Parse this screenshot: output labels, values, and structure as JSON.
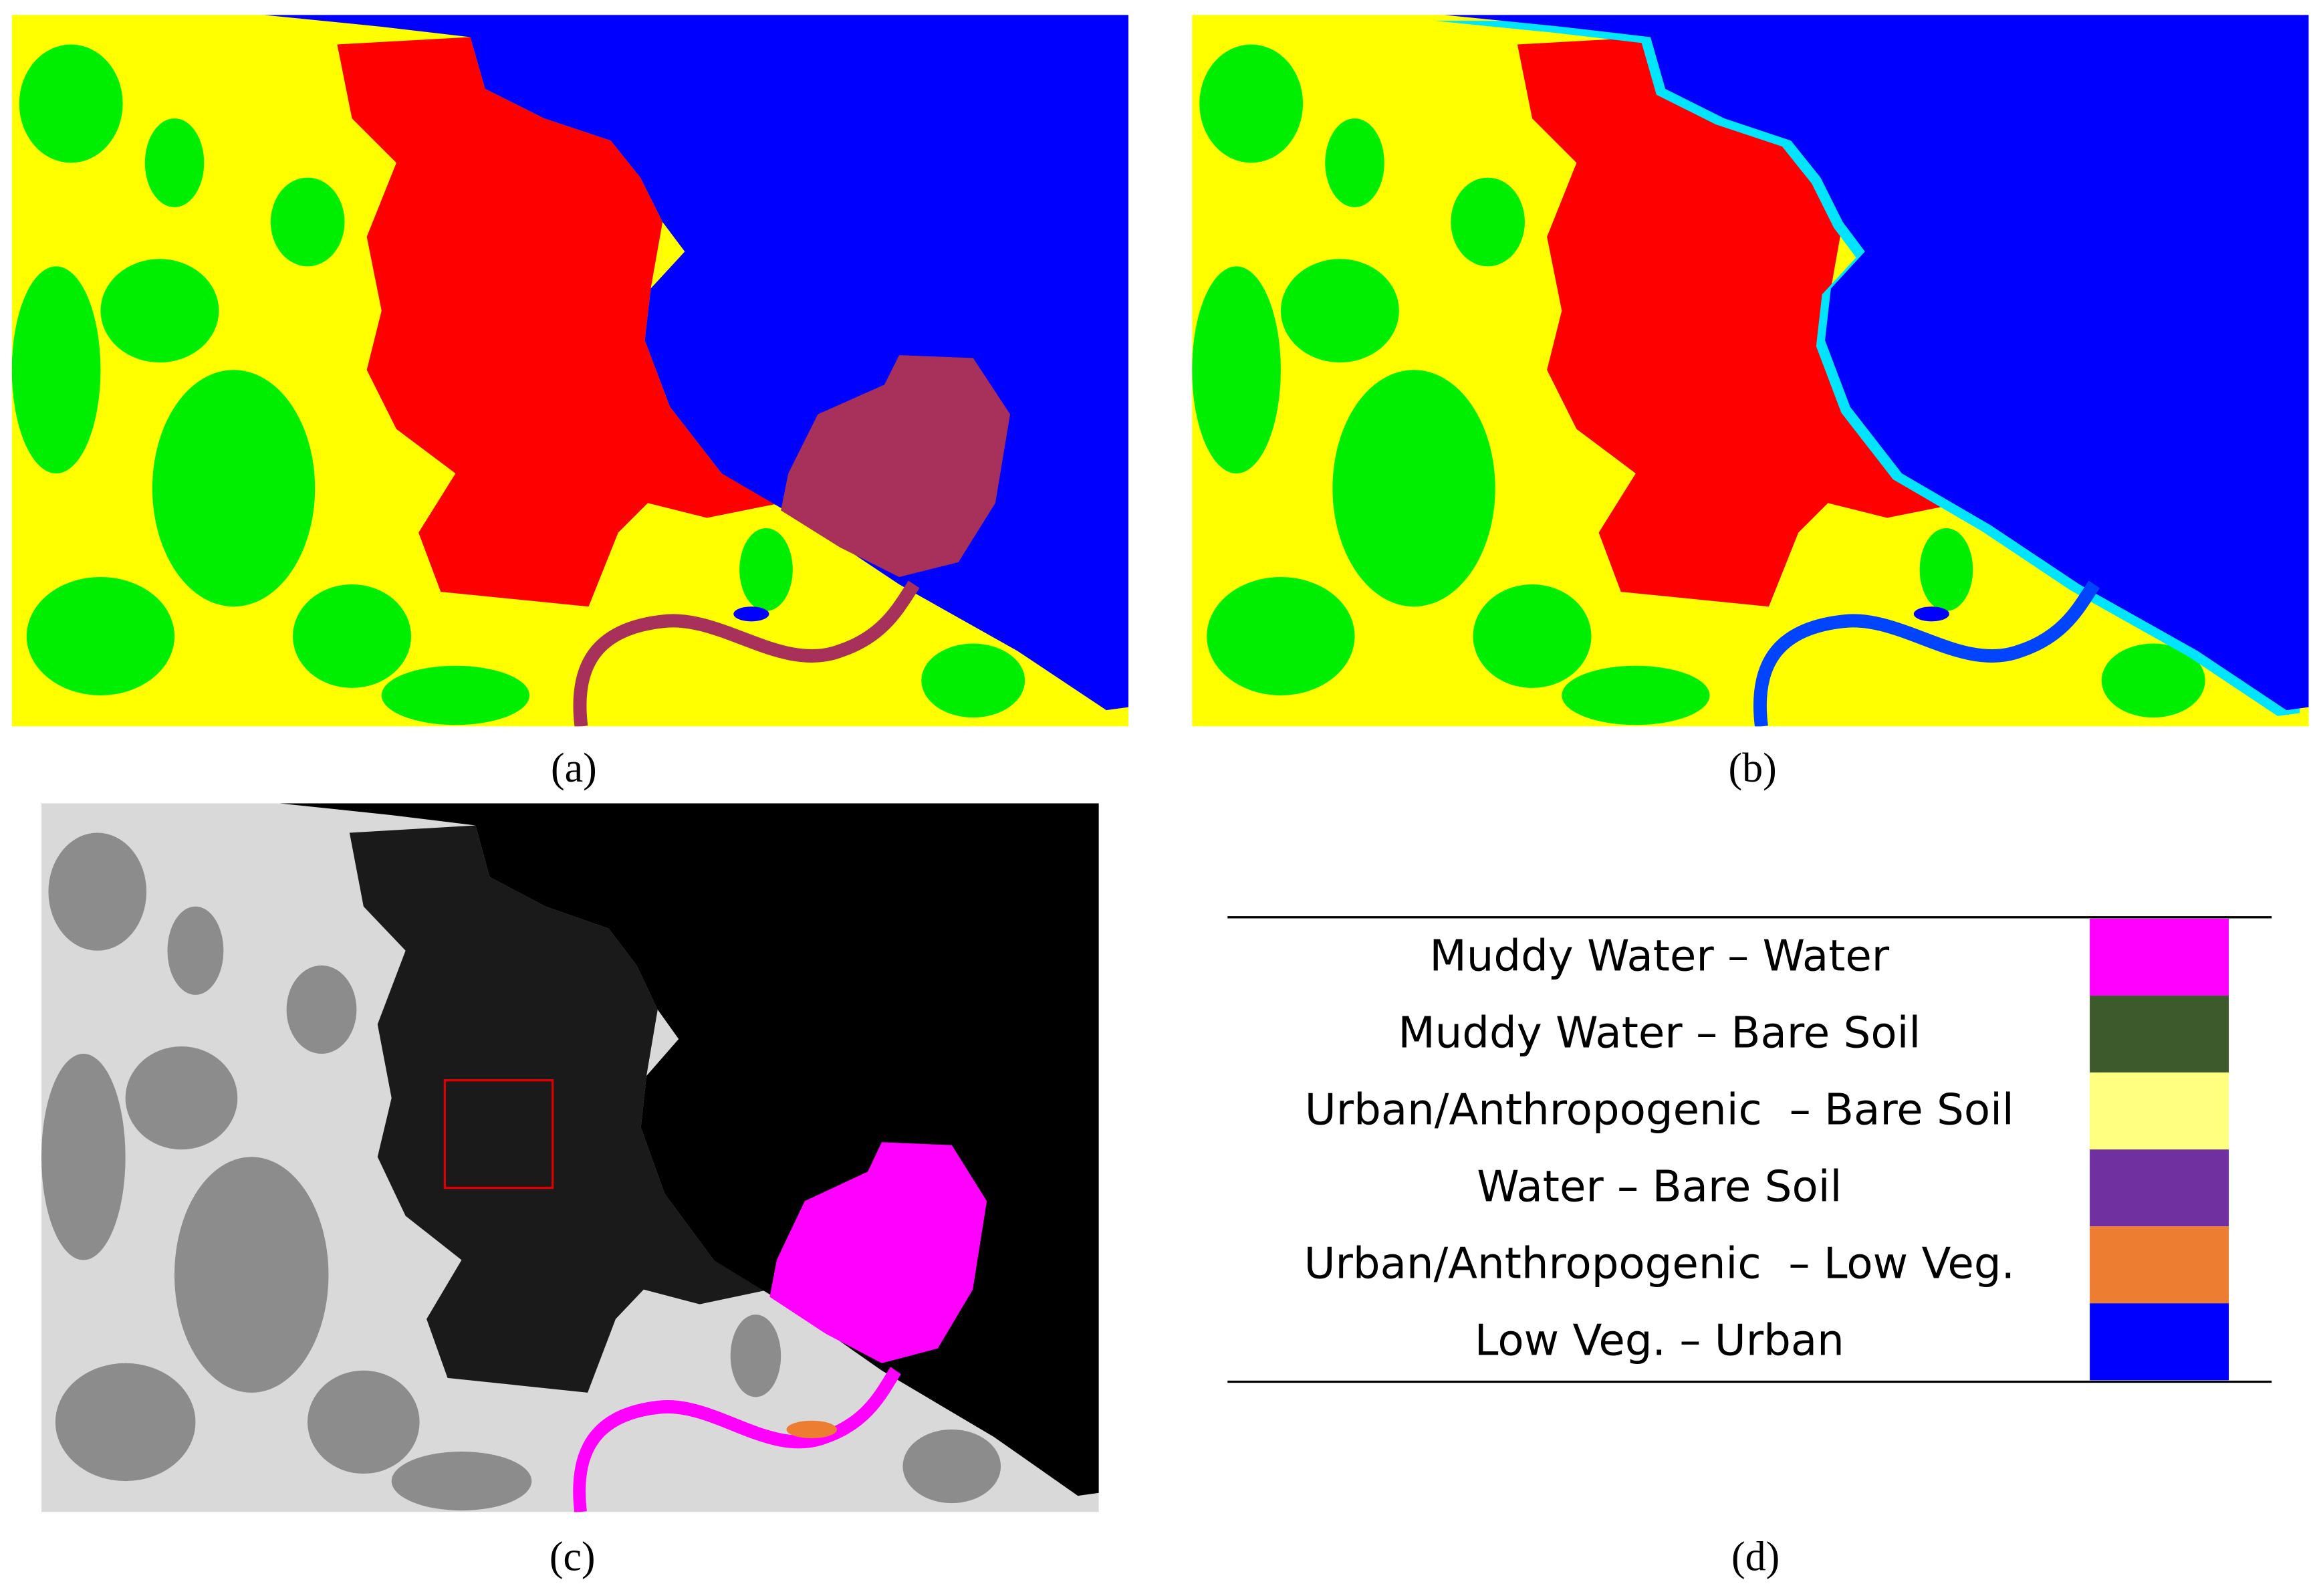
{
  "panel_labels": [
    "(a)",
    "(b)",
    "(c)",
    "(d)"
  ],
  "legend": {
    "items": [
      {
        "label": "Muddy Water – Water",
        "color": "#ff00ff"
      },
      {
        "label": "Muddy Water – Bare Soil",
        "color": "#3d5a2c"
      },
      {
        "label": "Urban/Anthropogenic  – Bare Soil",
        "color": "#ffff80"
      },
      {
        "label": "Water – Bare Soil",
        "color": "#7030a0"
      },
      {
        "label": "Urban/Anthropogenic  – Low Veg.",
        "color": "#ed7d31"
      },
      {
        "label": "Low Veg. – Urban",
        "color": "#0000ff"
      }
    ]
  }
}
